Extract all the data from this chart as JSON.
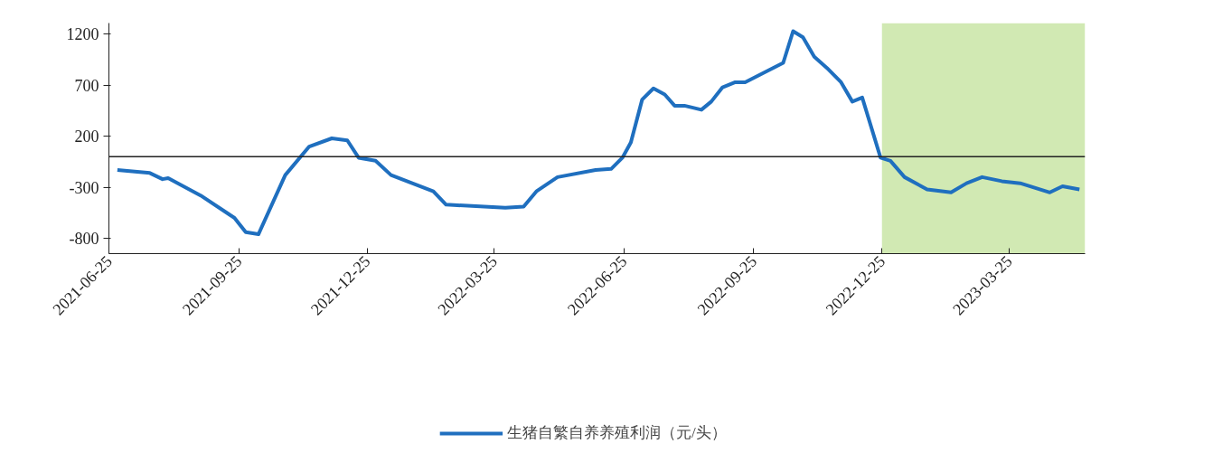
{
  "chart_data": {
    "type": "line",
    "x": [
      "2021-07-01",
      "2021-07-24",
      "2021-08-02",
      "2021-08-06",
      "2021-08-29",
      "2021-09-22",
      "2021-09-30",
      "2021-10-09",
      "2021-10-28",
      "2021-11-14",
      "2021-11-30",
      "2021-12-11",
      "2021-12-19",
      "2021-12-31",
      "2022-01-11",
      "2022-02-10",
      "2022-02-19",
      "2022-04-02",
      "2022-04-15",
      "2022-04-24",
      "2022-05-09",
      "2022-06-05",
      "2022-06-16",
      "2022-06-24",
      "2022-06-30",
      "2022-07-08",
      "2022-07-16",
      "2022-07-24",
      "2022-07-31",
      "2022-08-07",
      "2022-08-19",
      "2022-08-26",
      "2022-09-03",
      "2022-09-12",
      "2022-09-19",
      "2022-10-16",
      "2022-10-23",
      "2022-10-30",
      "2022-11-07",
      "2022-11-16",
      "2022-11-26",
      "2022-12-04",
      "2022-12-11",
      "2022-12-24",
      "2022-12-31",
      "2023-01-10",
      "2023-01-26",
      "2023-02-12",
      "2023-02-23",
      "2023-03-06",
      "2023-03-20",
      "2023-04-02",
      "2023-04-23",
      "2023-05-02",
      "2023-05-14"
    ],
    "series": [
      {
        "name": "生猪自繁自养养殖利润（元/头）",
        "color": "#1f6fbf",
        "values": [
          -130,
          -160,
          -220,
          -210,
          -380,
          -600,
          -740,
          -760,
          -180,
          100,
          180,
          160,
          -10,
          -40,
          -180,
          -340,
          -470,
          -500,
          -490,
          -340,
          -200,
          -130,
          -120,
          -10,
          140,
          560,
          670,
          610,
          500,
          500,
          460,
          540,
          680,
          730,
          730,
          920,
          1230,
          1170,
          980,
          870,
          730,
          540,
          580,
          -10,
          -40,
          -200,
          -320,
          -350,
          -260,
          -200,
          -240,
          -260,
          -350,
          -290,
          -320
        ]
      }
    ],
    "xlim": [
      "2021-06-25",
      "2023-05-18"
    ],
    "xticks": [
      "2021-06-25",
      "2021-09-25",
      "2021-12-25",
      "2022-03-25",
      "2022-06-25",
      "2022-09-25",
      "2022-12-25",
      "2023-03-25"
    ],
    "ylim": [
      -950,
      1310
    ],
    "yticks": [
      -800,
      -300,
      200,
      700,
      1200
    ],
    "bands": [
      {
        "axis": "x",
        "from": "2022-12-25",
        "to": "2023-05-18",
        "color": "#c5e3a0"
      }
    ],
    "legend": "bottom",
    "grid": false,
    "line_style": "solid",
    "marker": "none"
  }
}
